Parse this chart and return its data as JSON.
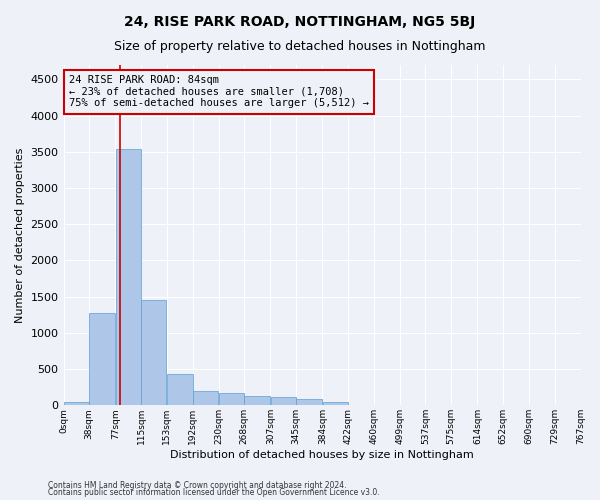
{
  "title": "24, RISE PARK ROAD, NOTTINGHAM, NG5 5BJ",
  "subtitle": "Size of property relative to detached houses in Nottingham",
  "xlabel": "Distribution of detached houses by size in Nottingham",
  "ylabel": "Number of detached properties",
  "footnote1": "Contains HM Land Registry data © Crown copyright and database right 2024.",
  "footnote2": "Contains public sector information licensed under the Open Government Licence v3.0.",
  "bin_edges": [
    0,
    38,
    77,
    115,
    153,
    192,
    230,
    268,
    307,
    345,
    384,
    422,
    460,
    499,
    537,
    575,
    614,
    652,
    690,
    729,
    767
  ],
  "bar_heights": [
    50,
    1270,
    3540,
    1460,
    430,
    200,
    170,
    130,
    120,
    80,
    50,
    10,
    0,
    0,
    10,
    0,
    0,
    0,
    0,
    0
  ],
  "bar_color": "#aec6e8",
  "bar_edge_color": "#5a9fd4",
  "property_size": 84,
  "red_line_color": "#cc0000",
  "annotation_line1": "24 RISE PARK ROAD: 84sqm",
  "annotation_line2": "← 23% of detached houses are smaller (1,708)",
  "annotation_line3": "75% of semi-detached houses are larger (5,512) →",
  "annotation_box_edgecolor": "#cc0000",
  "background_color": "#eef2f8",
  "ylim": [
    0,
    4700
  ],
  "yticks": [
    0,
    500,
    1000,
    1500,
    2000,
    2500,
    3000,
    3500,
    4000,
    4500
  ],
  "grid_color": "#ffffff",
  "title_fontsize": 10,
  "subtitle_fontsize": 9,
  "ylabel_fontsize": 8,
  "xlabel_fontsize": 8
}
